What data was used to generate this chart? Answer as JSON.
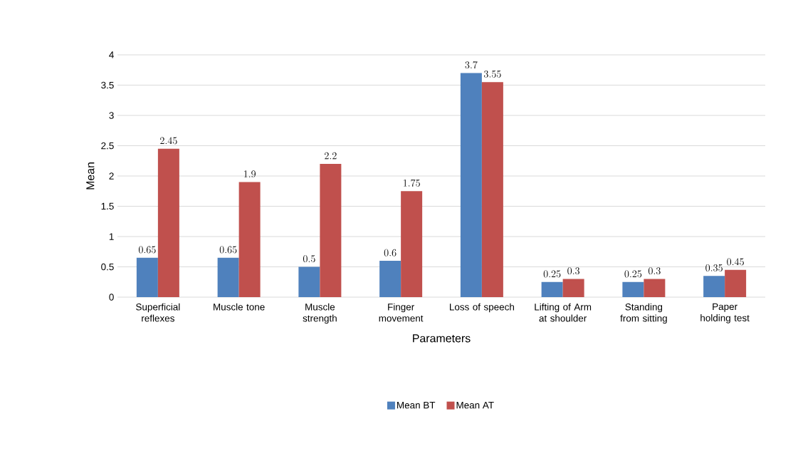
{
  "chart_data": {
    "type": "bar",
    "xlabel": "Parameters",
    "ylabel": "Mean",
    "categories": [
      "Superficial reflexes",
      "Muscle tone",
      "Muscle strength",
      "Finger movement",
      "Loss of speech",
      "Lifting of Arm at shoulder",
      "Standing from sitting",
      "Paper holding test"
    ],
    "series": [
      {
        "name": "Mean BT",
        "color": "#4f81bd",
        "values": [
          0.65,
          0.65,
          0.5,
          0.6,
          3.7,
          0.25,
          0.25,
          0.35
        ]
      },
      {
        "name": "Mean AT",
        "color": "#c0504d",
        "values": [
          2.45,
          1.9,
          2.2,
          1.75,
          3.55,
          0.3,
          0.3,
          0.45
        ]
      }
    ],
    "ylim": [
      0,
      4
    ],
    "yticks": [
      0,
      0.5,
      1,
      1.5,
      2,
      2.5,
      3,
      3.5,
      4
    ],
    "grid": "y",
    "legend": "bottom",
    "data_labels": true
  }
}
